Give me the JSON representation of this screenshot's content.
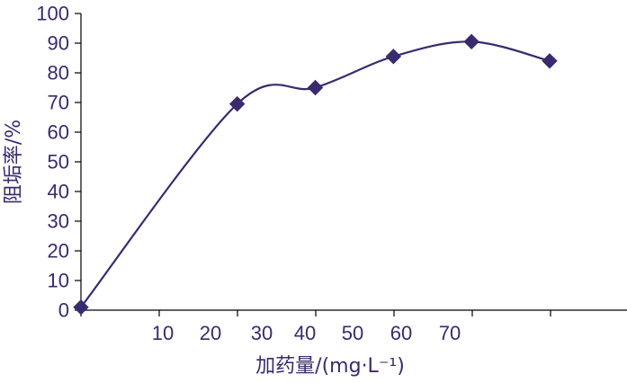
{
  "colors": {
    "series": "#3a2a6e",
    "text": "#3a2a6e",
    "axis": "#000000"
  },
  "chart_data": {
    "type": "line",
    "title": "",
    "xlabel": "加药量/(mg·L⁻¹)",
    "ylabel": "阻垢率/%",
    "ylim": [
      0,
      100
    ],
    "y_ticks": [
      "0",
      "10",
      "20",
      "30",
      "40",
      "50",
      "60",
      "70",
      "80",
      "90",
      "100"
    ],
    "x_tick_labels": [
      "10",
      "20",
      "30",
      "40",
      "50",
      "60",
      "70"
    ],
    "grid": false,
    "legend": "none",
    "series": [
      {
        "marker": "diamond",
        "smooth": true,
        "points": [
          {
            "x": 0,
            "y": 1
          },
          {
            "x": 20,
            "y": 69.5
          },
          {
            "x": 30,
            "y": 75
          },
          {
            "x": 40,
            "y": 85.5
          },
          {
            "x": 50,
            "y": 90.5
          },
          {
            "x": 60,
            "y": 84
          }
        ]
      }
    ]
  }
}
